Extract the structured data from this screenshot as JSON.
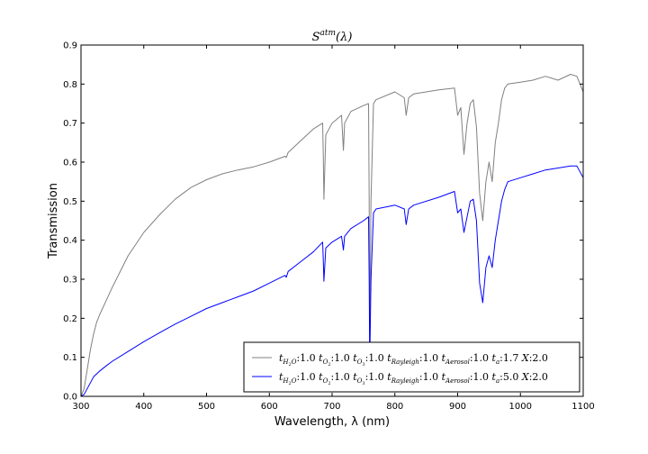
{
  "chart_data": {
    "type": "line",
    "title": "S^atm(λ)",
    "xlabel": "Wavelength, λ (nm)",
    "ylabel": "Transmission",
    "xlim": [
      300,
      1100
    ],
    "ylim": [
      0.0,
      0.9
    ],
    "x_ticks": [
      "300",
      "400",
      "500",
      "600",
      "700",
      "800",
      "900",
      "1000",
      "1100"
    ],
    "y_ticks": [
      "0.0",
      "0.1",
      "0.2",
      "0.3",
      "0.4",
      "0.5",
      "0.6",
      "0.7",
      "0.8",
      "0.9"
    ],
    "grid": false,
    "legend_position": "lower-right",
    "series": [
      {
        "name": "t_H2O:1.0 t_O2:1.0 t_O3:1.0 t_Rayleigh:1.0 t_Aerosol:1.0 t_a:1.7 X:2.0",
        "color": "#808080",
        "x": [
          300,
          305,
          310,
          315,
          320,
          325,
          330,
          340,
          350,
          375,
          400,
          425,
          450,
          475,
          500,
          525,
          550,
          575,
          600,
          625,
          627,
          630,
          650,
          670,
          685,
          686,
          687,
          690,
          700,
          715,
          718,
          720,
          730,
          750,
          758,
          759,
          760,
          762,
          766,
          770,
          800,
          815,
          818,
          822,
          830,
          870,
          895,
          900,
          905,
          910,
          915,
          920,
          925,
          930,
          935,
          940,
          945,
          950,
          955,
          960,
          965,
          970,
          975,
          980,
          1000,
          1020,
          1040,
          1060,
          1080,
          1090,
          1100
        ],
        "y": [
          0.0,
          0.02,
          0.07,
          0.12,
          0.16,
          0.19,
          0.21,
          0.245,
          0.28,
          0.36,
          0.42,
          0.465,
          0.505,
          0.535,
          0.555,
          0.57,
          0.58,
          0.588,
          0.6,
          0.615,
          0.612,
          0.625,
          0.655,
          0.685,
          0.7,
          0.62,
          0.505,
          0.67,
          0.7,
          0.72,
          0.63,
          0.7,
          0.73,
          0.745,
          0.75,
          0.5,
          0.12,
          0.5,
          0.75,
          0.76,
          0.78,
          0.765,
          0.72,
          0.765,
          0.775,
          0.785,
          0.79,
          0.72,
          0.74,
          0.62,
          0.7,
          0.75,
          0.76,
          0.69,
          0.52,
          0.45,
          0.55,
          0.6,
          0.55,
          0.65,
          0.7,
          0.76,
          0.79,
          0.8,
          0.805,
          0.81,
          0.82,
          0.81,
          0.825,
          0.82,
          0.78
        ]
      },
      {
        "name": "t_H2O:1.0 t_O2:1.0 t_O3:1.0 t_Rayleigh:1.0 t_Aerosol:1.0 t_a:5.0 X:2.0",
        "color": "#0000ff",
        "x": [
          300,
          305,
          310,
          315,
          320,
          330,
          340,
          350,
          375,
          400,
          425,
          450,
          475,
          500,
          525,
          550,
          575,
          600,
          625,
          627,
          630,
          650,
          670,
          685,
          686,
          687,
          690,
          700,
          715,
          718,
          720,
          730,
          750,
          758,
          759,
          760,
          762,
          766,
          770,
          800,
          815,
          818,
          822,
          830,
          870,
          895,
          900,
          905,
          910,
          915,
          920,
          925,
          930,
          935,
          940,
          945,
          950,
          955,
          960,
          965,
          970,
          975,
          980,
          1000,
          1020,
          1040,
          1060,
          1080,
          1090,
          1100
        ],
        "y": [
          0.0,
          0.005,
          0.02,
          0.035,
          0.05,
          0.065,
          0.078,
          0.09,
          0.115,
          0.14,
          0.163,
          0.185,
          0.205,
          0.225,
          0.24,
          0.255,
          0.27,
          0.29,
          0.31,
          0.305,
          0.32,
          0.345,
          0.37,
          0.395,
          0.35,
          0.295,
          0.38,
          0.395,
          0.41,
          0.375,
          0.41,
          0.43,
          0.45,
          0.46,
          0.3,
          0.08,
          0.3,
          0.47,
          0.48,
          0.49,
          0.48,
          0.44,
          0.48,
          0.49,
          0.51,
          0.525,
          0.47,
          0.48,
          0.42,
          0.46,
          0.5,
          0.505,
          0.45,
          0.29,
          0.24,
          0.33,
          0.36,
          0.33,
          0.4,
          0.45,
          0.5,
          0.53,
          0.55,
          0.56,
          0.57,
          0.58,
          0.585,
          0.59,
          0.59,
          0.56
        ]
      }
    ]
  }
}
